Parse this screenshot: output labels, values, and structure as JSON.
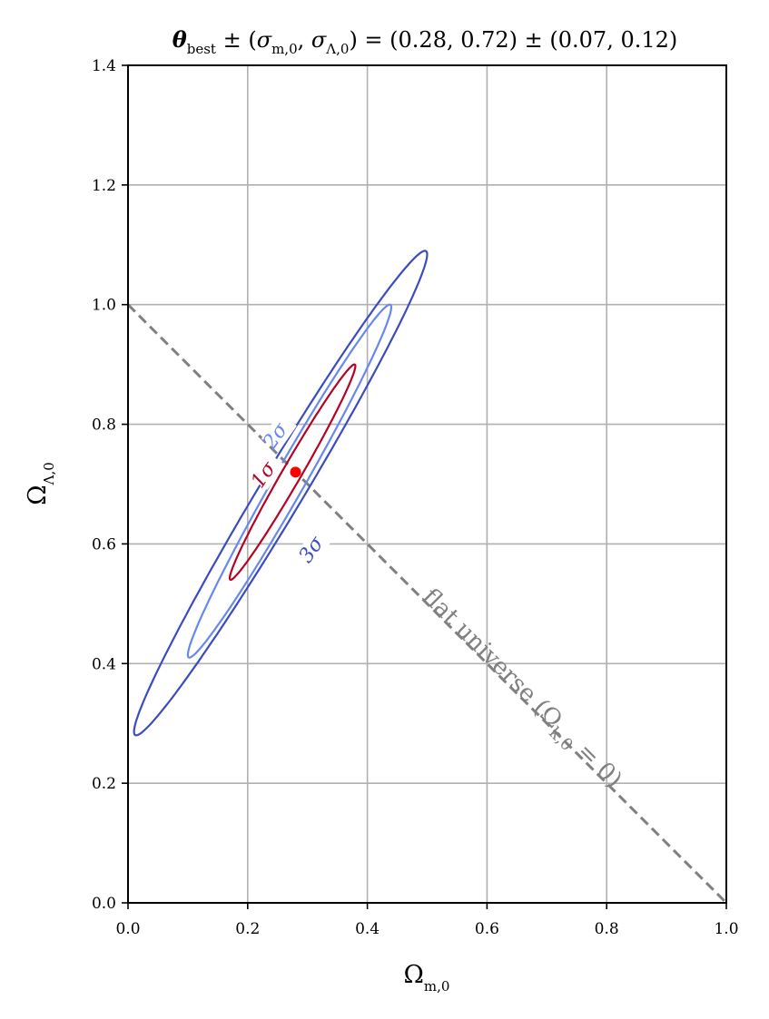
{
  "chart_data": {
    "type": "contour",
    "title": "θ_best ± (σ_m,0, σ_Λ,0) = (0.28, 0.72) ± (0.07, 0.12)",
    "title_parts": {
      "theta": "θ",
      "best": "best",
      "pm1": " ± (",
      "sigma_m": "σ",
      "sigma_m_sub": "m,0",
      "comma": ", ",
      "sigma_l": "σ",
      "sigma_l_sub": "Λ,0",
      "rest": ") = (0.28, 0.72) ± (0.07, 0.12)"
    },
    "xlabel": "Ω",
    "xlabel_sub": "m,0",
    "ylabel": "Ω",
    "ylabel_sub": "Λ,0",
    "xlim": [
      0.0,
      1.0
    ],
    "ylim": [
      0.0,
      1.4
    ],
    "xticks": [
      "0.0",
      "0.2",
      "0.4",
      "0.6",
      "0.8",
      "1.0"
    ],
    "yticks": [
      "0.0",
      "0.2",
      "0.4",
      "0.6",
      "0.8",
      "1.0",
      "1.2",
      "1.4"
    ],
    "grid": true,
    "best_fit": {
      "x": 0.28,
      "y": 0.72,
      "color": "#ff0000"
    },
    "contours": [
      {
        "label": "1σ",
        "color": "#b40426",
        "extent_x": [
          0.17,
          0.38
        ],
        "extent_y": [
          0.54,
          0.9
        ]
      },
      {
        "label": "2σ",
        "color": "#6788ee",
        "extent_x": [
          0.1,
          0.44
        ],
        "extent_y": [
          0.41,
          1.0
        ]
      },
      {
        "label": "3σ",
        "color": "#3b4cc0",
        "extent_x": [
          0.01,
          0.5
        ],
        "extent_y": [
          0.28,
          1.09
        ]
      }
    ],
    "flat_line": {
      "label": "flat universe (Ω",
      "label_sub": "k,0",
      "label_end": " = 0)",
      "points": [
        [
          0.0,
          1.0
        ],
        [
          1.0,
          0.0
        ]
      ],
      "color": "#808080"
    }
  }
}
